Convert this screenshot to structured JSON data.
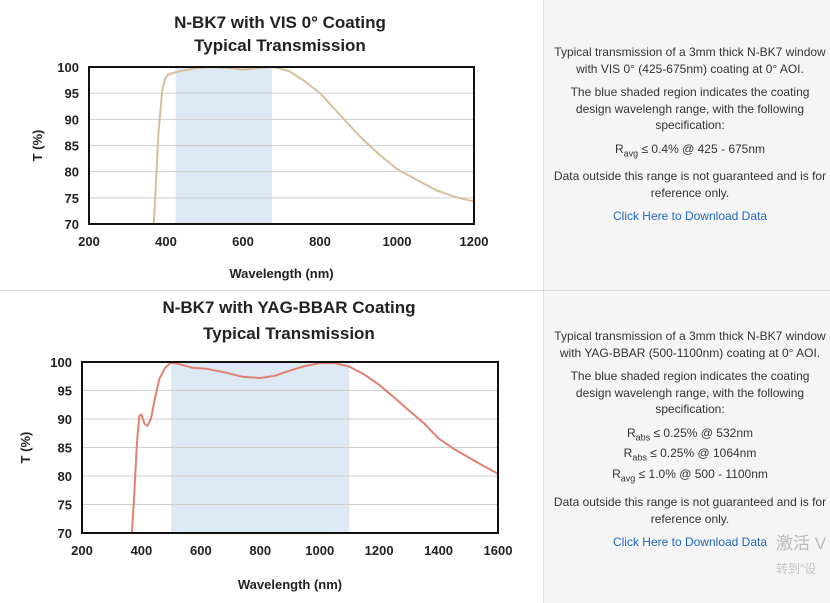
{
  "chart_data": [
    {
      "type": "line",
      "title_line1": "N-BK7 with VIS 0° Coating",
      "title_line2": "Typical Transmission",
      "xlabel": "Wavelength (nm)",
      "ylabel": "T (%)",
      "xlim": [
        200,
        1200
      ],
      "ylim": [
        70,
        100
      ],
      "xticks": [
        "200",
        "400",
        "600",
        "800",
        "1000",
        "1200"
      ],
      "yticks": [
        "100",
        "95",
        "90",
        "85",
        "80",
        "75",
        "70"
      ],
      "grid": true,
      "shaded_region": [
        425,
        675
      ],
      "shade_color": "#dde9f5",
      "line_color": "#d8bf9b",
      "series": [
        {
          "x": [
            368,
            372,
            380,
            390,
            398,
            405,
            415,
            430,
            450,
            480,
            520,
            560,
            600,
            640,
            680,
            720,
            760,
            800,
            850,
            900,
            950,
            1000,
            1050,
            1100,
            1150,
            1200
          ],
          "y": [
            70,
            75,
            87,
            95.5,
            97.8,
            98.5,
            98.8,
            99.1,
            99.4,
            99.8,
            100,
            99.8,
            99.5,
            99.8,
            100,
            99.2,
            97.3,
            95,
            91,
            87,
            83.5,
            80.5,
            78.5,
            76.5,
            75.2,
            74.3
          ]
        }
      ]
    },
    {
      "type": "line",
      "title_line1": "N-BK7 with YAG-BBAR Coating",
      "title_line2": "Typical Transmission",
      "xlabel": "Wavelength (nm)",
      "ylabel": "T (%)",
      "xlim": [
        200,
        1600
      ],
      "ylim": [
        70,
        100
      ],
      "xticks": [
        "200",
        "400",
        "600",
        "800",
        "1000",
        "1200",
        "1400",
        "1600"
      ],
      "yticks": [
        "100",
        "95",
        "90",
        "85",
        "80",
        "75",
        "70"
      ],
      "grid": true,
      "shaded_region": [
        500,
        1100
      ],
      "shade_color": "#dde9f5",
      "line_color": "#e08272",
      "series": [
        {
          "x": [
            368,
            375,
            385,
            393,
            400,
            410,
            420,
            432,
            445,
            460,
            480,
            500,
            530,
            570,
            620,
            680,
            740,
            800,
            850,
            900,
            950,
            1000,
            1050,
            1100,
            1150,
            1200,
            1250,
            1300,
            1350,
            1400,
            1450,
            1500,
            1550,
            1600
          ],
          "y": [
            70,
            76,
            86,
            90.5,
            90.8,
            89.2,
            88.8,
            90,
            93.5,
            97,
            99,
            99.9,
            99.6,
            99.0,
            98.8,
            98.2,
            97.4,
            97.2,
            97.6,
            98.5,
            99.3,
            99.8,
            99.8,
            99.2,
            97.8,
            96,
            93.8,
            91.5,
            89.3,
            86.6,
            84.8,
            83.3,
            81.8,
            80.4
          ]
        }
      ]
    }
  ],
  "panels": [
    {
      "desc1": "Typical transmission of a 3mm thick N-BK7 window with VIS 0° (425-675nm) coating at 0° AOI.",
      "desc2": "The blue shaded region indicates the coating design wavelengh range, with the following specification:",
      "specs": [
        {
          "sym": "R",
          "sub": "avg",
          "text": " ≤ 0.4% @ 425 - 675nm"
        }
      ],
      "desc3": "Data outside this range is not guaranteed and is for reference only.",
      "link": "Click Here to Download Data"
    },
    {
      "desc1": "Typical transmission of a 3mm thick N-BK7 window with YAG-BBAR (500-1100nm) coating at 0° AOI.",
      "desc2": "The blue shaded region indicates the coating design wavelengh range, with the following specification:",
      "specs": [
        {
          "sym": "R",
          "sub": "abs",
          "text": " ≤ 0.25% @ 532nm"
        },
        {
          "sym": "R",
          "sub": "abs",
          "text": " ≤ 0.25% @ 1064nm"
        },
        {
          "sym": "R",
          "sub": "avg",
          "text": " ≤ 1.0% @ 500 - 1100nm"
        }
      ],
      "desc3": "Data outside this range is not guaranteed and is for reference only.",
      "link": "Click Here to Download Data"
    }
  ],
  "watermark": {
    "line1": "激活 V",
    "line2": "转到\"设"
  }
}
